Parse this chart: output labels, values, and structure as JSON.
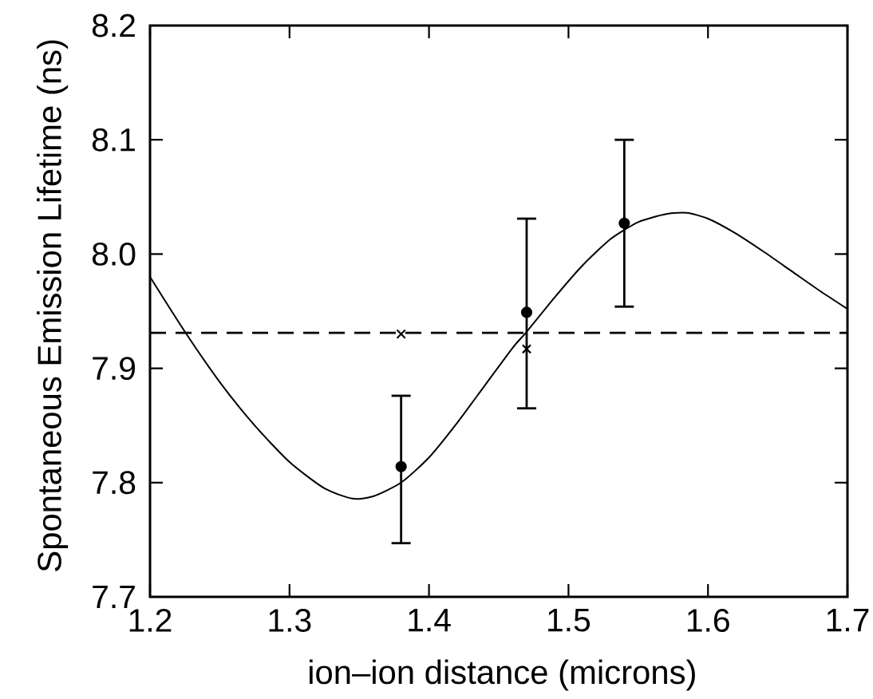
{
  "chart_data": {
    "type": "scatter",
    "xlabel": "ion–ion distance (microns)",
    "ylabel": "Spontaneous Emission Lifetime (ns)",
    "xlim": [
      1.2,
      1.7
    ],
    "ylim": [
      7.7,
      8.2
    ],
    "xticks": [
      1.2,
      1.3,
      1.4,
      1.5,
      1.6,
      1.7
    ],
    "yticks": [
      7.7,
      7.8,
      7.9,
      {
        "value": 8,
        "label": "8.0"
      },
      8.1,
      8.2
    ],
    "series": [
      {
        "type": "line",
        "color": "#000000",
        "line_style": "solid",
        "x": [
          1.2,
          1.225,
          1.25,
          1.275,
          1.3,
          1.325,
          1.345,
          1.36,
          1.38,
          1.4,
          1.42,
          1.44,
          1.46,
          1.47,
          1.49,
          1.51,
          1.53,
          1.55,
          1.57,
          1.585,
          1.6,
          1.62,
          1.64,
          1.66,
          1.68,
          1.7
        ],
        "values": [
          7.98,
          7.932,
          7.888,
          7.85,
          7.818,
          7.795,
          7.786,
          7.788,
          7.8,
          7.822,
          7.852,
          7.885,
          7.918,
          7.932,
          7.962,
          7.99,
          8.013,
          8.028,
          8.035,
          8.036,
          8.031,
          8.018,
          8.002,
          7.985,
          7.968,
          7.952
        ]
      },
      {
        "color": "#000000",
        "marker": "circle",
        "x": [
          1.38,
          1.47,
          1.54
        ],
        "values": [
          7.814,
          7.949,
          8.027
        ],
        "errors": [
          [
            7.747,
            7.876
          ],
          [
            7.865,
            8.031
          ],
          [
            7.954,
            8.1
          ]
        ]
      },
      {
        "color": "#000000",
        "marker": "cross",
        "x": [
          1.38,
          1.47
        ],
        "values": [
          7.93,
          7.917
        ]
      }
    ],
    "ref_lines": [
      {
        "axis": "y",
        "value": 7.931,
        "line_style": "dashed",
        "color": "#000000"
      }
    ]
  }
}
